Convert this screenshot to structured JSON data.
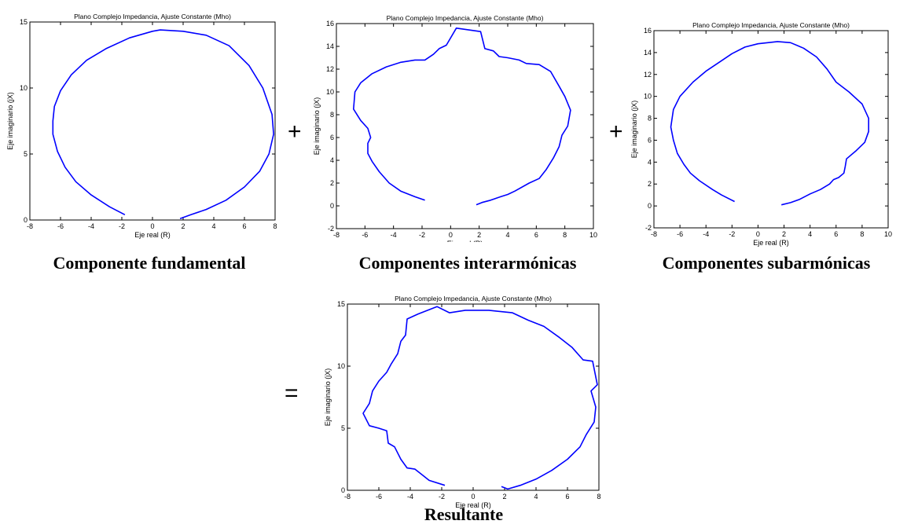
{
  "captions": {
    "fundamental": "Componente fundamental",
    "interharmonic": "Componentes interarmónicas",
    "subharmonic": "Componentes subarmónicas",
    "resultant": "Resultante"
  },
  "operators": {
    "plus1": "+",
    "plus2": "+",
    "equals": "="
  },
  "colors": {
    "line": "#0000ff",
    "axes": "#000000",
    "background": "#ffffff"
  },
  "chart_data": [
    {
      "id": "fundamental",
      "type": "line",
      "title": "Plano Complejo Impedancia, Ajuste Constante (Mho)",
      "xlabel": "Eje real (R)",
      "ylabel": "Eje imaginario (jX)",
      "xlim": [
        -8,
        8
      ],
      "ylim": [
        0,
        15
      ],
      "xticks": [
        -8,
        -6,
        -4,
        -2,
        0,
        2,
        4,
        6,
        8
      ],
      "yticks": [
        0,
        5,
        10,
        15
      ],
      "grid": false,
      "series": [
        {
          "points": [
            [
              -1.8,
              0.4
            ],
            [
              -2.8,
              1.0
            ],
            [
              -4.0,
              1.9
            ],
            [
              -5.0,
              2.9
            ],
            [
              -5.7,
              4.0
            ],
            [
              -6.2,
              5.2
            ],
            [
              -6.5,
              6.5
            ],
            [
              -6.5,
              7.5
            ],
            [
              -6.4,
              8.6
            ],
            [
              -6.0,
              9.8
            ],
            [
              -5.3,
              11.0
            ],
            [
              -4.3,
              12.1
            ],
            [
              -3.0,
              13.0
            ],
            [
              -1.5,
              13.8
            ],
            [
              0.0,
              14.3
            ],
            [
              0.5,
              14.4
            ],
            [
              2.0,
              14.3
            ],
            [
              3.5,
              14.0
            ],
            [
              5.0,
              13.2
            ],
            [
              6.3,
              11.7
            ],
            [
              7.2,
              10.0
            ],
            [
              7.8,
              8.0
            ],
            [
              7.9,
              6.5
            ],
            [
              7.6,
              5.0
            ],
            [
              7.0,
              3.7
            ],
            [
              6.0,
              2.5
            ],
            [
              4.8,
              1.5
            ],
            [
              3.5,
              0.8
            ],
            [
              2.5,
              0.4
            ],
            [
              1.8,
              0.1
            ]
          ]
        }
      ]
    },
    {
      "id": "interharmonic",
      "type": "line",
      "title": "Plano Complejo Impedancia, Ajuste Constante (Mho)",
      "xlabel": "Eje real (R)",
      "ylabel": "Eje imaginario (jX)",
      "xlim": [
        -8,
        10
      ],
      "ylim": [
        -2,
        16
      ],
      "xticks": [
        -8,
        -6,
        -4,
        -2,
        0,
        2,
        4,
        6,
        8,
        10
      ],
      "yticks": [
        -2,
        0,
        2,
        4,
        6,
        8,
        10,
        12,
        14,
        16
      ],
      "grid": false,
      "series": [
        {
          "points": [
            [
              -1.8,
              0.5
            ],
            [
              -2.5,
              0.8
            ],
            [
              -3.5,
              1.3
            ],
            [
              -4.3,
              2.0
            ],
            [
              -5.0,
              3.0
            ],
            [
              -5.5,
              3.9
            ],
            [
              -5.8,
              4.6
            ],
            [
              -5.8,
              5.5
            ],
            [
              -5.6,
              6.0
            ],
            [
              -5.8,
              6.8
            ],
            [
              -6.3,
              7.5
            ],
            [
              -6.8,
              8.5
            ],
            [
              -6.7,
              10.0
            ],
            [
              -6.3,
              10.8
            ],
            [
              -5.5,
              11.6
            ],
            [
              -4.5,
              12.2
            ],
            [
              -3.5,
              12.6
            ],
            [
              -2.5,
              12.8
            ],
            [
              -1.8,
              12.8
            ],
            [
              -1.2,
              13.3
            ],
            [
              -0.8,
              13.8
            ],
            [
              -0.3,
              14.1
            ],
            [
              0.4,
              15.6
            ],
            [
              2.1,
              15.3
            ],
            [
              2.4,
              13.8
            ],
            [
              3.0,
              13.6
            ],
            [
              3.4,
              13.1
            ],
            [
              4.0,
              13.0
            ],
            [
              4.8,
              12.8
            ],
            [
              5.3,
              12.5
            ],
            [
              6.2,
              12.4
            ],
            [
              7.0,
              11.8
            ],
            [
              7.6,
              10.5
            ],
            [
              8.0,
              9.6
            ],
            [
              8.4,
              8.4
            ],
            [
              8.2,
              7.0
            ],
            [
              7.8,
              6.2
            ],
            [
              7.6,
              5.2
            ],
            [
              7.2,
              4.2
            ],
            [
              6.7,
              3.2
            ],
            [
              6.2,
              2.4
            ],
            [
              5.5,
              2.0
            ],
            [
              4.5,
              1.3
            ],
            [
              4.0,
              1.0
            ],
            [
              3.5,
              0.8
            ],
            [
              2.8,
              0.5
            ],
            [
              2.2,
              0.3
            ],
            [
              1.8,
              0.1
            ]
          ]
        }
      ]
    },
    {
      "id": "subharmonic",
      "type": "line",
      "title": "Plano Complejo Impedancia, Ajuste Constante (Mho)",
      "xlabel": "Eje real (R)",
      "ylabel": "Eje imaginario (jX)",
      "xlim": [
        -8,
        10
      ],
      "ylim": [
        -2,
        16
      ],
      "xticks": [
        -8,
        -6,
        -4,
        -2,
        0,
        2,
        4,
        6,
        8,
        10
      ],
      "yticks": [
        -2,
        0,
        2,
        4,
        6,
        8,
        10,
        12,
        14,
        16
      ],
      "grid": false,
      "series": [
        {
          "points": [
            [
              -1.8,
              0.4
            ],
            [
              -2.8,
              1.0
            ],
            [
              -3.5,
              1.5
            ],
            [
              -4.5,
              2.3
            ],
            [
              -5.2,
              3.0
            ],
            [
              -5.7,
              3.8
            ],
            [
              -6.2,
              4.8
            ],
            [
              -6.5,
              6.0
            ],
            [
              -6.7,
              7.2
            ],
            [
              -6.5,
              8.8
            ],
            [
              -6.0,
              10.0
            ],
            [
              -5.0,
              11.3
            ],
            [
              -4.0,
              12.3
            ],
            [
              -3.0,
              13.1
            ],
            [
              -2.0,
              13.9
            ],
            [
              -1.0,
              14.5
            ],
            [
              0.0,
              14.8
            ],
            [
              1.5,
              15.0
            ],
            [
              2.5,
              14.9
            ],
            [
              3.5,
              14.4
            ],
            [
              4.5,
              13.6
            ],
            [
              5.3,
              12.5
            ],
            [
              6.0,
              11.3
            ],
            [
              7.0,
              10.4
            ],
            [
              8.0,
              9.3
            ],
            [
              8.5,
              8.0
            ],
            [
              8.5,
              6.8
            ],
            [
              8.2,
              5.8
            ],
            [
              7.5,
              5.0
            ],
            [
              6.8,
              4.3
            ],
            [
              6.7,
              3.6
            ],
            [
              6.6,
              3.0
            ],
            [
              6.2,
              2.6
            ],
            [
              5.8,
              2.4
            ],
            [
              5.5,
              2.0
            ],
            [
              4.8,
              1.5
            ],
            [
              4.0,
              1.1
            ],
            [
              3.2,
              0.6
            ],
            [
              2.5,
              0.3
            ],
            [
              1.8,
              0.1
            ]
          ]
        }
      ]
    },
    {
      "id": "resultant",
      "type": "line",
      "title": "Plano Complejo Impedancia, Ajuste Constante (Mho)",
      "xlabel": "Eje real (R)",
      "ylabel": "Eje imaginario (jX)",
      "xlim": [
        -8,
        8
      ],
      "ylim": [
        0,
        15
      ],
      "xticks": [
        -8,
        -6,
        -4,
        -2,
        0,
        2,
        4,
        6,
        8
      ],
      "yticks": [
        0,
        5,
        10,
        15
      ],
      "grid": false,
      "series": [
        {
          "points": [
            [
              -1.8,
              0.4
            ],
            [
              -2.8,
              0.8
            ],
            [
              -3.2,
              1.2
            ],
            [
              -3.7,
              1.7
            ],
            [
              -4.2,
              1.8
            ],
            [
              -4.6,
              2.5
            ],
            [
              -5.0,
              3.5
            ],
            [
              -5.4,
              3.8
            ],
            [
              -5.5,
              4.8
            ],
            [
              -6.0,
              5.0
            ],
            [
              -6.6,
              5.2
            ],
            [
              -7.0,
              6.2
            ],
            [
              -6.6,
              7.0
            ],
            [
              -6.4,
              8.0
            ],
            [
              -6.0,
              8.8
            ],
            [
              -5.5,
              9.5
            ],
            [
              -5.2,
              10.2
            ],
            [
              -4.8,
              11.0
            ],
            [
              -4.6,
              12.0
            ],
            [
              -4.3,
              12.5
            ],
            [
              -4.2,
              13.8
            ],
            [
              -3.5,
              14.2
            ],
            [
              -2.3,
              14.8
            ],
            [
              -1.5,
              14.3
            ],
            [
              -0.5,
              14.5
            ],
            [
              1.0,
              14.5
            ],
            [
              2.5,
              14.3
            ],
            [
              3.5,
              13.7
            ],
            [
              4.5,
              13.2
            ],
            [
              5.5,
              12.3
            ],
            [
              6.3,
              11.5
            ],
            [
              7.0,
              10.5
            ],
            [
              7.6,
              10.4
            ],
            [
              7.9,
              8.5
            ],
            [
              7.5,
              8.0
            ],
            [
              7.8,
              6.7
            ],
            [
              7.7,
              5.5
            ],
            [
              7.2,
              4.5
            ],
            [
              6.8,
              3.5
            ],
            [
              6.0,
              2.5
            ],
            [
              5.0,
              1.6
            ],
            [
              4.0,
              0.9
            ],
            [
              3.0,
              0.4
            ],
            [
              2.2,
              0.1
            ],
            [
              1.8,
              0.3
            ]
          ]
        }
      ]
    }
  ]
}
